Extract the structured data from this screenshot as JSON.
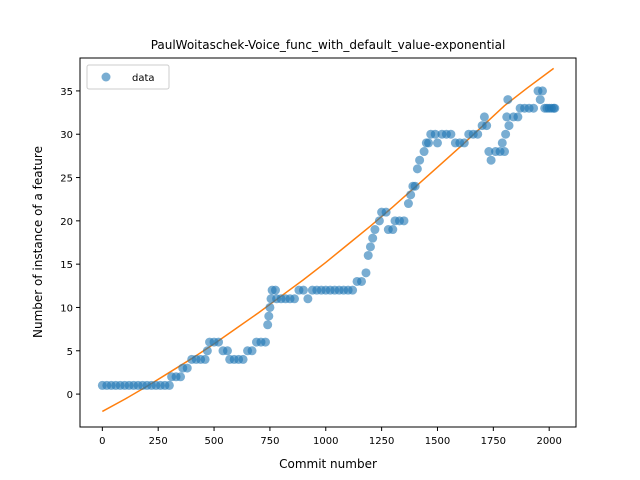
{
  "chart_data": {
    "type": "scatter",
    "title": "PaulWoitaschek-Voice_func_with_default_value-exponential",
    "xlabel": "Commit number",
    "ylabel": "Number of instance of a feature",
    "xlim": [
      -100,
      2120
    ],
    "ylim": [
      -3.8,
      38.8
    ],
    "x_ticks": [
      0,
      250,
      500,
      750,
      1000,
      1250,
      1500,
      1750,
      2000
    ],
    "y_ticks": [
      0,
      5,
      10,
      15,
      20,
      25,
      30,
      35
    ],
    "grid": false,
    "legend": {
      "position": "top-left",
      "entries": [
        "data"
      ]
    },
    "colors": {
      "data": "#1f77b4",
      "fit": "#ff7f0e"
    },
    "series": [
      {
        "name": "data",
        "kind": "scatter",
        "points": [
          [
            0,
            1
          ],
          [
            20,
            1
          ],
          [
            40,
            1
          ],
          [
            60,
            1
          ],
          [
            80,
            1
          ],
          [
            100,
            1
          ],
          [
            120,
            1
          ],
          [
            140,
            1
          ],
          [
            160,
            1
          ],
          [
            180,
            1
          ],
          [
            200,
            1
          ],
          [
            220,
            1
          ],
          [
            240,
            1
          ],
          [
            260,
            1
          ],
          [
            280,
            1
          ],
          [
            300,
            1
          ],
          [
            310,
            2
          ],
          [
            330,
            2
          ],
          [
            350,
            2
          ],
          [
            360,
            3
          ],
          [
            380,
            3
          ],
          [
            400,
            4
          ],
          [
            420,
            4
          ],
          [
            440,
            4
          ],
          [
            460,
            4
          ],
          [
            470,
            5
          ],
          [
            480,
            6
          ],
          [
            500,
            6
          ],
          [
            520,
            6
          ],
          [
            540,
            5
          ],
          [
            560,
            5
          ],
          [
            570,
            4
          ],
          [
            590,
            4
          ],
          [
            610,
            4
          ],
          [
            630,
            4
          ],
          [
            650,
            5
          ],
          [
            670,
            5
          ],
          [
            690,
            6
          ],
          [
            710,
            6
          ],
          [
            730,
            6
          ],
          [
            740,
            8
          ],
          [
            745,
            9
          ],
          [
            750,
            10
          ],
          [
            755,
            11
          ],
          [
            760,
            12
          ],
          [
            775,
            12
          ],
          [
            780,
            11
          ],
          [
            800,
            11
          ],
          [
            820,
            11
          ],
          [
            840,
            11
          ],
          [
            860,
            11
          ],
          [
            880,
            12
          ],
          [
            900,
            12
          ],
          [
            920,
            11
          ],
          [
            940,
            12
          ],
          [
            960,
            12
          ],
          [
            980,
            12
          ],
          [
            1000,
            12
          ],
          [
            1020,
            12
          ],
          [
            1040,
            12
          ],
          [
            1060,
            12
          ],
          [
            1080,
            12
          ],
          [
            1100,
            12
          ],
          [
            1120,
            12
          ],
          [
            1140,
            13
          ],
          [
            1160,
            13
          ],
          [
            1180,
            14
          ],
          [
            1190,
            16
          ],
          [
            1200,
            17
          ],
          [
            1210,
            18
          ],
          [
            1220,
            19
          ],
          [
            1240,
            20
          ],
          [
            1250,
            21
          ],
          [
            1270,
            21
          ],
          [
            1280,
            19
          ],
          [
            1300,
            19
          ],
          [
            1310,
            20
          ],
          [
            1330,
            20
          ],
          [
            1350,
            20
          ],
          [
            1370,
            22
          ],
          [
            1380,
            23
          ],
          [
            1390,
            24
          ],
          [
            1400,
            24
          ],
          [
            1410,
            26
          ],
          [
            1420,
            27
          ],
          [
            1440,
            28
          ],
          [
            1450,
            29
          ],
          [
            1460,
            29
          ],
          [
            1470,
            30
          ],
          [
            1490,
            30
          ],
          [
            1500,
            29
          ],
          [
            1520,
            30
          ],
          [
            1540,
            30
          ],
          [
            1560,
            30
          ],
          [
            1580,
            29
          ],
          [
            1600,
            29
          ],
          [
            1620,
            29
          ],
          [
            1640,
            30
          ],
          [
            1660,
            30
          ],
          [
            1680,
            30
          ],
          [
            1700,
            31
          ],
          [
            1720,
            31
          ],
          [
            1710,
            32
          ],
          [
            1730,
            28
          ],
          [
            1740,
            27
          ],
          [
            1760,
            28
          ],
          [
            1780,
            28
          ],
          [
            1790,
            29
          ],
          [
            1800,
            28
          ],
          [
            1805,
            30
          ],
          [
            1810,
            32
          ],
          [
            1815,
            34
          ],
          [
            1820,
            31
          ],
          [
            1840,
            32
          ],
          [
            1860,
            32
          ],
          [
            1870,
            33
          ],
          [
            1890,
            33
          ],
          [
            1910,
            33
          ],
          [
            1930,
            33
          ],
          [
            1950,
            35
          ],
          [
            1960,
            34
          ],
          [
            1970,
            35
          ],
          [
            1980,
            33
          ],
          [
            1990,
            33
          ],
          [
            2000,
            33
          ],
          [
            2010,
            33
          ],
          [
            2020,
            33
          ],
          [
            2025,
            33
          ]
        ]
      },
      {
        "name": "",
        "kind": "line",
        "points": [
          [
            0,
            -2.0
          ],
          [
            100,
            -0.6
          ],
          [
            200,
            0.9
          ],
          [
            300,
            2.5
          ],
          [
            400,
            4.1
          ],
          [
            500,
            5.8
          ],
          [
            600,
            7.6
          ],
          [
            700,
            9.4
          ],
          [
            800,
            11.3
          ],
          [
            900,
            13.2
          ],
          [
            1000,
            15.2
          ],
          [
            1100,
            17.3
          ],
          [
            1200,
            19.4
          ],
          [
            1300,
            21.6
          ],
          [
            1400,
            23.9
          ],
          [
            1500,
            26.2
          ],
          [
            1600,
            28.5
          ],
          [
            1700,
            30.9
          ],
          [
            1800,
            33.3
          ],
          [
            1900,
            35.3
          ],
          [
            2020,
            37.6
          ]
        ]
      }
    ]
  }
}
